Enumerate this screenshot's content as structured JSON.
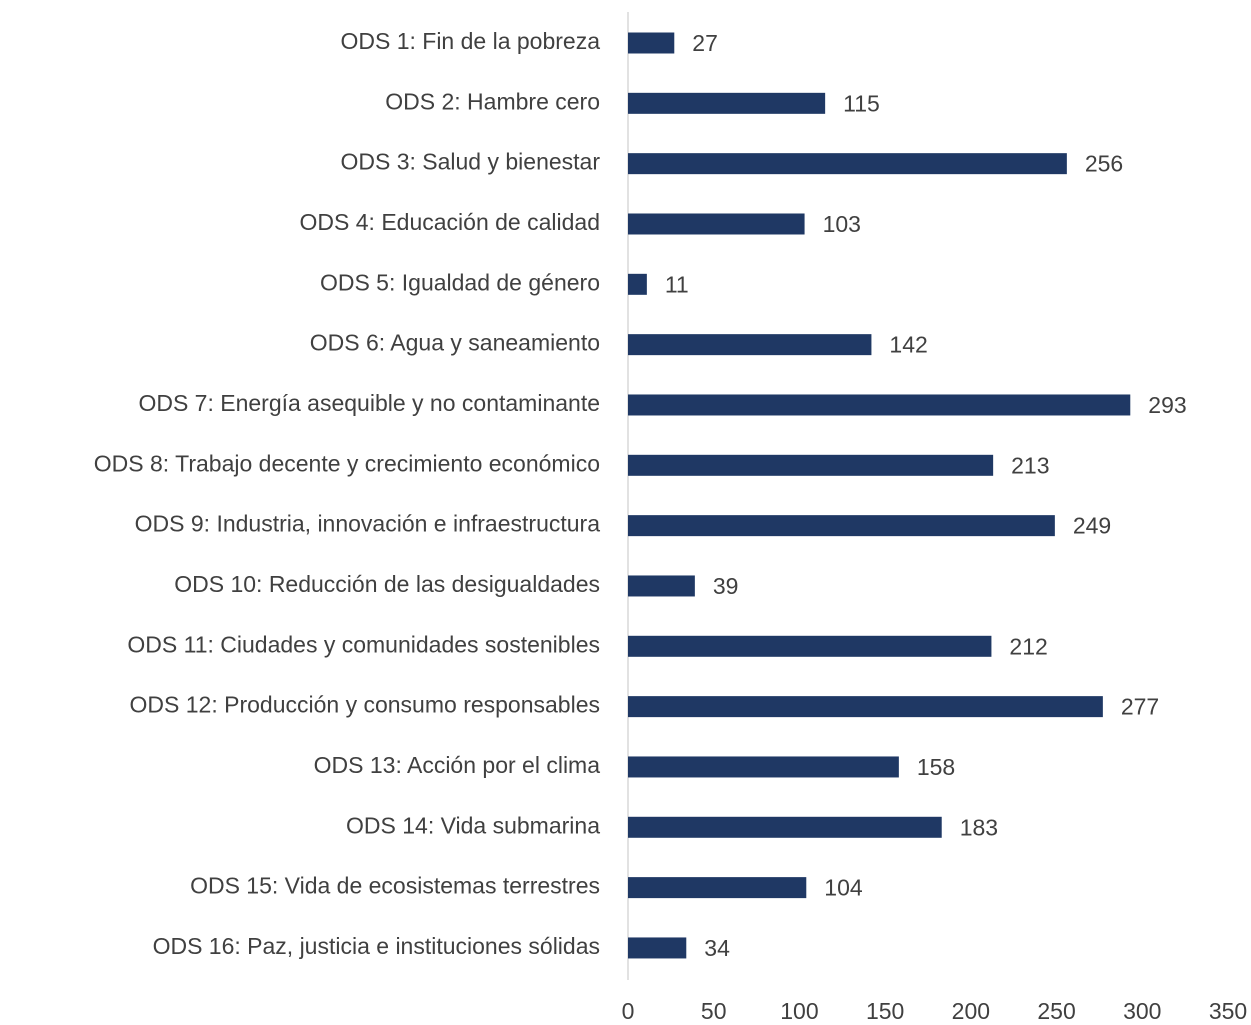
{
  "chart_data": {
    "type": "bar",
    "orientation": "horizontal",
    "categories": [
      "ODS 1: Fin de la pobreza",
      "ODS 2: Hambre cero",
      "ODS 3: Salud y bienestar",
      "ODS 4: Educación de calidad",
      "ODS 5: Igualdad de género",
      "ODS 6: Agua y saneamiento",
      "ODS 7: Energía asequible y no contaminante",
      "ODS 8: Trabajo decente y crecimiento económico",
      "ODS 9: Industria, innovación e infraestructura",
      "ODS 10: Reducción de las desigualdades",
      "ODS 11: Ciudades y comunidades sostenibles",
      "ODS 12: Producción y consumo responsables",
      "ODS 13: Acción por el clima",
      "ODS 14: Vida submarina",
      "ODS 15: Vida de ecosistemas terrestres",
      "ODS 16: Paz, justicia e instituciones sólidas"
    ],
    "values": [
      27,
      115,
      256,
      103,
      11,
      142,
      293,
      213,
      249,
      39,
      212,
      277,
      158,
      183,
      104,
      34
    ],
    "color": "#1f3864",
    "xlim": [
      0,
      350
    ],
    "xticks": [
      0,
      50,
      100,
      150,
      200,
      250,
      300,
      350
    ],
    "grid": false
  }
}
